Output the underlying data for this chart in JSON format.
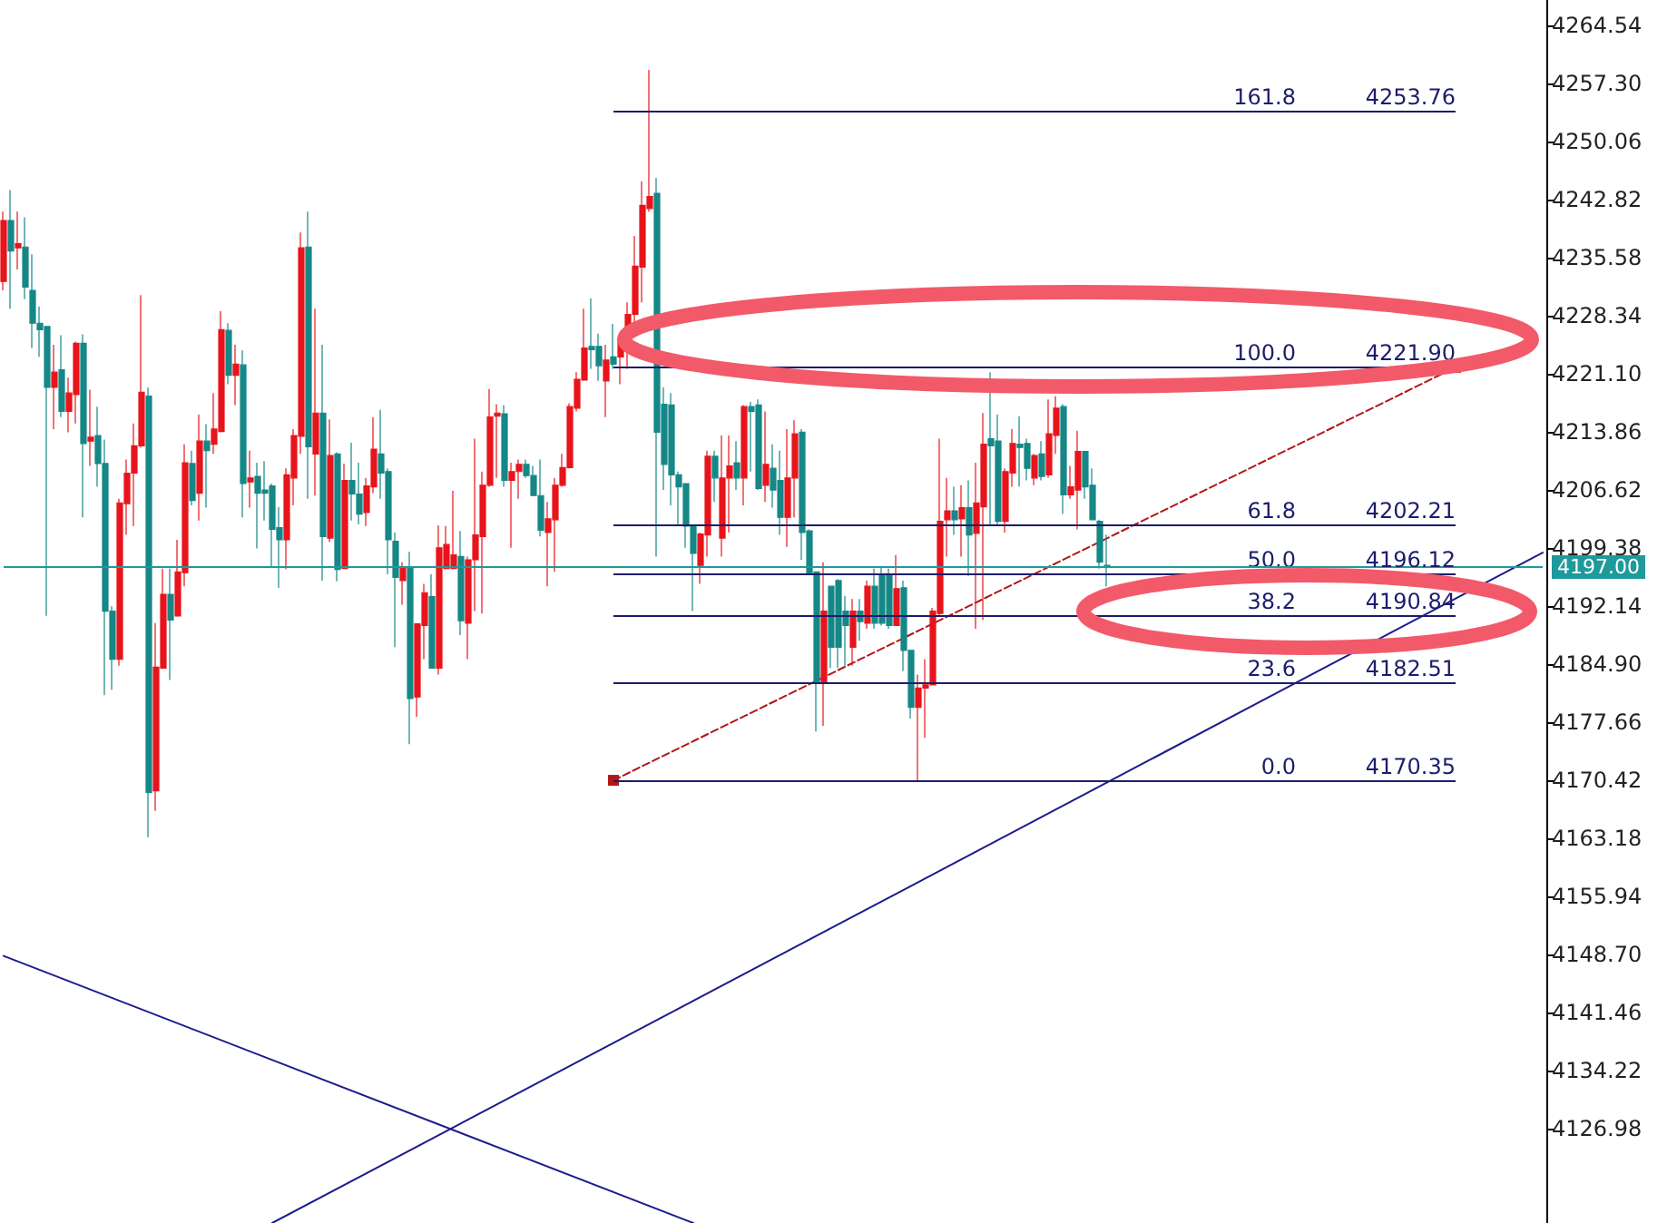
{
  "chart_data": {
    "type": "candlestick",
    "categories": [
      null,
      null,
      null,
      null,
      null,
      null,
      null,
      null,
      null,
      null,
      null,
      null,
      null,
      null,
      null,
      null,
      null,
      null,
      null,
      null,
      null,
      null,
      null,
      null,
      null,
      null,
      null,
      null,
      null,
      null,
      null,
      null,
      null,
      null,
      null,
      null,
      null,
      null,
      null,
      null,
      null,
      null,
      null,
      null,
      null,
      null,
      null,
      null,
      null,
      null,
      null,
      null,
      null,
      null,
      null,
      null,
      null,
      null,
      null,
      null,
      null,
      null,
      null,
      null,
      null,
      null,
      null,
      null,
      null,
      null,
      null,
      null,
      null,
      null,
      null,
      null,
      null,
      null,
      null,
      null,
      null,
      null,
      null,
      null,
      null,
      null,
      null,
      null,
      null,
      null,
      null,
      null,
      null,
      null,
      null,
      null,
      null,
      null,
      null,
      null,
      null,
      null,
      null,
      null,
      null,
      null,
      null,
      null,
      null,
      null,
      null,
      null,
      null,
      null,
      null,
      null,
      null,
      null,
      null,
      null,
      null,
      null,
      null,
      null,
      null,
      null,
      null,
      null,
      null,
      null,
      null,
      null,
      null,
      null,
      null,
      null,
      null,
      null,
      null,
      null,
      null,
      null,
      null,
      null,
      null,
      null,
      null,
      null,
      null,
      null,
      null,
      null,
      null,
      null,
      null,
      null,
      null,
      null,
      null,
      null,
      null,
      null,
      null,
      null,
      null,
      null,
      null,
      null,
      null,
      null,
      null,
      null,
      null,
      null,
      null,
      null,
      null,
      null,
      null,
      null,
      null,
      null,
      null,
      null,
      null,
      null,
      null,
      null,
      null,
      null,
      null,
      null,
      null,
      null,
      null,
      null,
      null,
      null,
      null,
      null,
      null,
      null,
      null,
      null,
      null,
      null,
      null,
      null,
      null,
      null,
      null,
      null,
      null
    ],
    "colors": [
      "#e8141c",
      "#168787",
      "#e8141c",
      "#168787",
      "#168787",
      "#168787",
      "#168787",
      "#e8141c",
      "#168787",
      "#e8141c",
      "#e8141c",
      "#168787",
      "#e8141c",
      "#168787",
      "#168787",
      "#168787",
      "#e8141c",
      "#e8141c",
      "#e8141c",
      "#e8141c",
      "#168787",
      "#e8141c",
      "#e8141c",
      "#168787",
      "#e8141c",
      "#e8141c",
      "#168787",
      "#e8141c",
      "#168787",
      "#e8141c",
      "#e8141c",
      "#168787",
      "#e8141c",
      "#168787",
      "#e8141c",
      "#168787",
      "#168787",
      "#168787",
      "#168787",
      "#e8141c",
      "#e8141c",
      "#e8141c",
      "#168787",
      "#e8141c",
      "#168787",
      "#e8141c",
      "#168787",
      "#e8141c",
      "#168787",
      "#168787",
      "#e8141c",
      "#e8141c",
      "#168787",
      "#168787",
      "#168787",
      "#e8141c",
      "#168787",
      "#e8141c",
      "#e8141c",
      "#168787",
      "#e8141c",
      "#e8141c",
      "#e8141c",
      "#168787",
      "#e8141c",
      "#e8141c",
      "#e8141c",
      "#e8141c",
      "#e8141c",
      "#168787",
      "#e8141c",
      "#e8141c",
      "#168787",
      "#168787",
      "#168787",
      "#e8141c",
      "#e8141c",
      "#e8141c",
      "#e8141c",
      "#e8141c",
      "#e8141c",
      "#168787",
      "#168787",
      "#e8141c",
      "#168787",
      "#e8141c",
      "#e8141c",
      "#e8141c",
      "#e8141c",
      "#e8141c",
      "#168787",
      "#168787",
      "#168787",
      "#168787",
      "#168787",
      "#168787",
      "#e8141c",
      "#e8141c",
      "#168787",
      "#e8141c",
      "#e8141c",
      "#168787",
      "#e8141c",
      "#168787",
      "#168787",
      "#e8141c",
      "#168787",
      "#168787",
      "#e8141c",
      "#e8141c",
      "#168787",
      "#168787",
      "#168787",
      "#e8141c",
      "#168787",
      "#168787",
      "#168787",
      "#e8141c",
      "#168787",
      "#e8141c",
      "#168787",
      "#168787",
      "#168787",
      "#e8141c",
      "#168787",
      "#168787",
      "#e8141c",
      "#e8141c",
      "#e8141c",
      "#e8141c",
      "#e8141c",
      "#168787",
      "#e8141c",
      "#168787",
      "#e8141c",
      "#e8141c",
      "#168787",
      "#168787",
      "#e8141c",
      "#e8141c",
      "#168787",
      "#168787",
      "#e8141c",
      "#168787",
      "#e8141c",
      "#e8141c",
      "#168787",
      "#e8141c",
      "#e8141c",
      "#168787",
      "#168787",
      "#168787",
      "#168787",
      null,
      null,
      null,
      null,
      null,
      null,
      null,
      null,
      null,
      null,
      null,
      null,
      null,
      null,
      null,
      null,
      null,
      null,
      null,
      null,
      null,
      null,
      null,
      null,
      null,
      null,
      null,
      null,
      null,
      null,
      null,
      null,
      null,
      null,
      null,
      null,
      null,
      null,
      null,
      null,
      null,
      null,
      null,
      null,
      null,
      null,
      null,
      null,
      null,
      null,
      null,
      null,
      null,
      null,
      null,
      null,
      null,
      null,
      null,
      null
    ],
    "ohlc": [
      [
        4232.6,
        4241.3,
        4231.5,
        4240.2
      ],
      [
        4240.2,
        4244.0,
        4229.2,
        4236.4
      ],
      [
        4236.8,
        4241.3,
        4234.1,
        4237.3
      ],
      [
        4236.9,
        4240.6,
        4230.4,
        4231.9
      ],
      [
        4231.5,
        4236.0,
        4224.3,
        4227.4
      ],
      [
        4227.4,
        4229.5,
        4223.2,
        4226.6
      ],
      [
        4227.0,
        4227.0,
        4190.9,
        4219.4
      ],
      [
        4219.4,
        4224.7,
        4214.2,
        4221.3
      ],
      [
        4221.6,
        4225.9,
        4215.7,
        4216.4
      ],
      [
        4216.4,
        4220.6,
        4213.8,
        4218.7
      ],
      [
        4218.5,
        4225.1,
        4214.9,
        4224.9
      ],
      [
        4224.9,
        4226.0,
        4203.2,
        4212.4
      ],
      [
        4212.7,
        4219.1,
        4209.6,
        4213.2
      ],
      [
        4213.4,
        4217.0,
        4207.0,
        4209.9
      ],
      [
        4209.9,
        4212.9,
        4181.0,
        4191.5
      ],
      [
        4191.5,
        4192.1,
        4181.7,
        4185.5
      ],
      [
        4185.5,
        4205.5,
        4184.7,
        4205.0
      ],
      [
        4204.9,
        4210.4,
        4201.0,
        4208.7
      ],
      [
        4208.7,
        4214.9,
        4202.1,
        4212.1
      ],
      [
        4212.1,
        4230.9,
        4211.9,
        4218.8
      ],
      [
        4218.3,
        4219.4,
        4163.3,
        4168.9
      ],
      [
        4169.1,
        4190.0,
        4166.6,
        4184.5
      ],
      [
        4184.4,
        4196.8,
        4184.4,
        4193.6
      ],
      [
        4193.6,
        4196.8,
        4182.9,
        4190.4
      ],
      [
        4190.9,
        4200.4,
        4190.8,
        4196.4
      ],
      [
        4196.3,
        4212.3,
        4194.6,
        4210.0
      ],
      [
        4209.9,
        4211.5,
        4204.7,
        4205.3
      ],
      [
        4206.2,
        4216.0,
        4202.8,
        4212.7
      ],
      [
        4212.7,
        4214.8,
        4204.4,
        4211.5
      ],
      [
        4212.3,
        4218.7,
        4211.1,
        4214.2
      ],
      [
        4213.9,
        4228.9,
        4213.8,
        4226.6
      ],
      [
        4226.5,
        4227.4,
        4219.8,
        4220.9
      ],
      [
        4220.9,
        4224.7,
        4217.2,
        4222.3
      ],
      [
        4222.2,
        4224.0,
        4203.2,
        4207.4
      ],
      [
        4207.6,
        4211.5,
        4204.4,
        4208.1
      ],
      [
        4208.3,
        4210.0,
        4199.3,
        4206.2
      ],
      [
        4206.6,
        4210.2,
        4202.8,
        4206.2
      ],
      [
        4207.1,
        4207.4,
        4197.0,
        4201.7
      ],
      [
        4201.9,
        4204.5,
        4194.4,
        4200.4
      ],
      [
        4200.4,
        4209.3,
        4196.7,
        4208.5
      ],
      [
        4208.1,
        4214.2,
        4204.7,
        4213.4
      ],
      [
        4213.3,
        4238.7,
        4211.1,
        4236.8
      ],
      [
        4236.9,
        4241.3,
        4205.5,
        4212.0
      ],
      [
        4211.1,
        4229.2,
        4205.9,
        4216.2
      ],
      [
        4216.2,
        4224.7,
        4195.3,
        4200.8
      ],
      [
        4200.6,
        4215.4,
        4200.1,
        4210.9
      ],
      [
        4211.1,
        4211.3,
        4195.2,
        4196.7
      ],
      [
        4196.8,
        4209.9,
        4196.8,
        4207.8
      ],
      [
        4207.8,
        4212.5,
        4202.8,
        4206.1
      ],
      [
        4206.1,
        4210.0,
        4202.3,
        4203.6
      ],
      [
        4203.8,
        4208.1,
        4202.1,
        4207.1
      ],
      [
        4207.0,
        4215.7,
        4206.2,
        4211.7
      ],
      [
        4211.1,
        4216.6,
        4205.5,
        4208.7
      ],
      [
        4208.9,
        4209.3,
        4196.1,
        4200.4
      ],
      [
        4200.2,
        4201.3,
        4187.0,
        4195.7
      ],
      [
        4195.3,
        4197.6,
        4192.3,
        4196.8
      ],
      [
        4196.8,
        4198.9,
        4174.9,
        4180.6
      ],
      [
        4180.8,
        4190.0,
        4178.3,
        4189.9
      ],
      [
        4189.7,
        4194.9,
        4185.5,
        4193.8
      ],
      [
        4193.3,
        4196.1,
        4184.4,
        4184.4
      ],
      [
        4184.4,
        4202.2,
        4183.6,
        4199.4
      ],
      [
        4196.8,
        4202.1,
        4196.8,
        4199.8
      ],
      [
        4196.8,
        4206.5,
        4196.8,
        4198.5
      ],
      [
        4198.3,
        4201.5,
        4188.5,
        4190.3
      ],
      [
        4190.0,
        4198.3,
        4185.5,
        4197.9
      ],
      [
        4197.9,
        4213.0,
        4191.5,
        4201.0
      ],
      [
        4200.8,
        4208.9,
        4191.2,
        4207.2
      ],
      [
        4207.2,
        4219.2,
        4207.0,
        4215.7
      ],
      [
        4215.8,
        4217.3,
        4208.1,
        4216.2
      ],
      [
        4216.1,
        4217.2,
        4207.0,
        4207.8
      ],
      [
        4207.8,
        4210.0,
        4199.4,
        4208.9
      ],
      [
        4208.9,
        4210.4,
        4205.5,
        4209.8
      ],
      [
        4209.8,
        4210.4,
        4208.1,
        4208.4
      ],
      [
        4208.4,
        4209.6,
        4205.9,
        4205.9
      ],
      [
        4205.9,
        4210.4,
        4200.8,
        4201.6
      ],
      [
        4201.3,
        4205.1,
        4194.6,
        4203.0
      ],
      [
        4202.9,
        4208.1,
        4196.4,
        4207.2
      ],
      [
        4207.2,
        4211.1,
        4207.0,
        4209.4
      ],
      [
        4209.4,
        4217.4,
        4209.3,
        4217.0
      ],
      [
        4216.8,
        4221.3,
        4216.4,
        4220.4
      ],
      [
        4220.3,
        4229.2,
        4220.2,
        4224.3
      ],
      [
        4224.5,
        4230.5,
        4221.7,
        4224.1
      ],
      [
        4224.5,
        4226.1,
        4220.2,
        4222.1
      ],
      [
        4220.2,
        4224.7,
        4215.7,
        4222.8
      ],
      [
        4223.2,
        4227.3,
        4221.7,
        4222.3
      ],
      [
        4223.2,
        4225.5,
        4219.8,
        4225.5
      ],
      [
        4225.5,
        4230.0,
        4221.7,
        4228.5
      ],
      [
        4228.5,
        4238.3,
        4227.4,
        4234.5
      ],
      [
        4234.4,
        4245.1,
        4230.0,
        4242.1
      ],
      [
        4241.7,
        4259.0,
        4241.3,
        4243.2
      ],
      [
        4243.6,
        4245.5,
        4198.3,
        4213.8
      ],
      [
        4217.3,
        4219.4,
        4206.6,
        4209.8
      ],
      [
        4217.2,
        4218.7,
        4204.7,
        4208.5
      ],
      [
        4208.5,
        4208.9,
        4202.1,
        4207.0
      ],
      [
        4207.4,
        4207.4,
        4199.4,
        4202.1
      ],
      [
        4202.1,
        4202.1,
        4191.5,
        4198.7
      ],
      [
        4197.2,
        4201.3,
        4194.9,
        4201.1
      ],
      [
        4201.0,
        4211.5,
        4198.3,
        4210.8
      ],
      [
        4210.8,
        4211.5,
        4205.1,
        4208.1
      ],
      [
        4200.6,
        4213.4,
        4198.3,
        4208.1
      ],
      [
        4208.1,
        4213.4,
        4201.3,
        4209.6
      ],
      [
        4210.0,
        4212.7,
        4206.6,
        4208.1
      ],
      [
        4208.1,
        4217.2,
        4204.7,
        4217.0
      ],
      [
        4217.0,
        4217.6,
        4208.9,
        4216.4
      ],
      [
        4217.2,
        4217.9,
        4206.6,
        4206.8
      ],
      [
        4207.2,
        4216.4,
        4205.1,
        4209.8
      ],
      [
        4209.3,
        4212.3,
        4204.4,
        4206.6
      ],
      [
        4207.8,
        4211.5,
        4201.0,
        4203.2
      ],
      [
        4203.2,
        4214.2,
        4199.5,
        4208.1
      ],
      [
        4208.1,
        4215.3,
        4203.2,
        4213.6
      ],
      [
        4213.8,
        4214.2,
        4197.9,
        4201.3
      ],
      [
        4201.5,
        4201.7,
        4196.1,
        4196.1
      ],
      [
        4196.4,
        4196.4,
        4176.5,
        4182.5
      ],
      [
        4182.5,
        4197.6,
        4177.2,
        4191.5
      ],
      [
        4194.6,
        4194.6,
        4184.4,
        4187.0
      ],
      [
        4195.3,
        4195.5,
        4184.4,
        4187.0
      ],
      [
        4191.5,
        4193.4,
        4184.7,
        4189.7
      ],
      [
        4187.0,
        4193.0,
        4184.7,
        4191.5
      ],
      [
        4191.5,
        4193.0,
        4187.8,
        4190.2
      ],
      [
        4190.0,
        4195.3,
        4189.3,
        4194.6
      ],
      [
        4194.6,
        4196.8,
        4189.3,
        4190.0
      ],
      [
        4195.9,
        4197.0,
        4189.7,
        4190.0
      ],
      [
        4196.1,
        4196.8,
        4189.3,
        4189.7
      ],
      [
        4189.7,
        4198.5,
        4189.7,
        4194.3
      ],
      [
        4194.4,
        4195.3,
        4184.0,
        4186.6
      ],
      [
        4186.6,
        4186.6,
        4178.1,
        4179.5
      ],
      [
        4179.5,
        4183.6,
        4170.4,
        4181.9
      ],
      [
        4181.9,
        4185.5,
        4175.7,
        4182.3
      ],
      [
        4182.3,
        4191.9,
        4182.3,
        4191.5
      ],
      [
        4191.2,
        4213.0,
        4190.9,
        4202.7
      ],
      [
        4202.9,
        4208.1,
        4198.3,
        4204.0
      ],
      [
        4204.0,
        4207.0,
        4201.0,
        4202.9
      ],
      [
        4203.0,
        4207.2,
        4198.3,
        4204.4
      ],
      [
        4204.4,
        4207.8,
        4195.9,
        4201.0
      ],
      [
        4201.2,
        4210.0,
        4189.3,
        4205.0
      ],
      [
        4204.5,
        4216.2,
        4190.4,
        4212.3
      ],
      [
        4213.0,
        4221.3,
        4202.1,
        4212.1
      ],
      [
        4212.7,
        4216.0,
        4202.1,
        4202.7
      ],
      [
        4202.7,
        4209.3,
        4201.3,
        4208.9
      ],
      [
        4208.7,
        4214.2,
        4207.0,
        4212.4
      ],
      [
        4212.3,
        4215.8,
        4207.0,
        4211.9
      ],
      [
        4212.4,
        4213.0,
        4207.8,
        4209.3
      ],
      [
        4208.1,
        4211.1,
        4207.2,
        4210.9
      ],
      [
        4211.1,
        4212.7,
        4207.8,
        4208.3
      ],
      [
        4208.5,
        4217.9,
        4208.1,
        4213.6
      ],
      [
        4213.4,
        4218.3,
        4211.1,
        4216.8
      ],
      [
        4217.0,
        4217.3,
        4203.6,
        4206.0
      ],
      [
        4206.0,
        4209.6,
        4205.5,
        4207.0
      ],
      [
        4206.6,
        4214.0,
        4201.7,
        4211.4
      ],
      [
        4211.4,
        4211.5,
        4205.5,
        4207.0
      ],
      [
        4207.2,
        4209.3,
        4202.9,
        4202.9
      ],
      [
        4202.7,
        4202.9,
        4196.8,
        4197.6
      ],
      [
        4197.2,
        4201.0,
        4194.6,
        4197.0
      ],
      null,
      null,
      null,
      null,
      null,
      null,
      null,
      null,
      null,
      null,
      null,
      null,
      null,
      null,
      null,
      null,
      null,
      null,
      null,
      null,
      null,
      null,
      null,
      null,
      null,
      null,
      null,
      null,
      null,
      null,
      null,
      null,
      null,
      null,
      null,
      null,
      null,
      null,
      null,
      null,
      null,
      null,
      null,
      null,
      null,
      null,
      null,
      null,
      null,
      null,
      null,
      null,
      null,
      null,
      null,
      null,
      null,
      null,
      null,
      null
    ],
    "series": [
      {
        "type": "line",
        "color": "#b01818",
        "line_style": "dashed",
        "marker": "square",
        "values": [
          null,
          null,
          null,
          null,
          null,
          null,
          null,
          null,
          null,
          null,
          null,
          null,
          null,
          null,
          null,
          null,
          null,
          null,
          null,
          null,
          null,
          null,
          null,
          null,
          null,
          null,
          null,
          null,
          null,
          null,
          null,
          null,
          null,
          null,
          null,
          null,
          null,
          null,
          null,
          null,
          null,
          null,
          null,
          null,
          null,
          null,
          null,
          null,
          null,
          null,
          null,
          null,
          null,
          null,
          null,
          null,
          null,
          null,
          null,
          null,
          null,
          null,
          null,
          null,
          null,
          null,
          null,
          null,
          null,
          null,
          null,
          null,
          null,
          null,
          null,
          null,
          null,
          null,
          null,
          null,
          null,
          null,
          null,
          null,
          4170.4,
          null,
          null,
          null,
          null,
          null,
          null,
          null,
          null,
          null,
          null,
          null,
          null,
          null,
          null,
          null,
          null,
          null,
          null,
          null,
          null,
          null,
          null,
          null,
          null,
          null,
          null,
          null,
          null,
          null,
          null,
          null,
          null,
          null,
          null,
          null,
          null,
          null,
          null,
          null,
          null,
          null,
          null,
          null,
          null,
          null,
          null,
          null,
          null,
          null,
          null,
          null,
          null,
          null,
          null,
          null,
          null,
          null,
          null,
          null,
          null,
          null,
          null,
          null,
          null,
          null,
          null,
          null,
          null,
          null,
          null,
          null,
          null,
          null,
          null,
          null,
          null,
          null,
          null,
          null,
          null,
          null,
          null,
          null,
          null,
          null,
          null,
          null,
          null,
          null,
          null,
          null,
          null,
          null,
          null,
          null,
          null,
          null,
          null,
          null,
          null,
          null,
          null,
          null,
          null,
          null,
          null,
          null,
          null,
          null,
          null,
          null,
          null,
          null,
          null,
          null,
          4221.9,
          null,
          null,
          null,
          null,
          null,
          null,
          null,
          null,
          null,
          null,
          null,
          null
        ]
      },
      {
        "type": "line",
        "color": "#1c1c8c",
        "line_style": "solid",
        "marker": "none",
        "values": [
          null,
          null,
          null,
          null,
          null,
          null,
          null,
          null,
          null,
          null,
          null,
          null,
          null,
          null,
          null,
          null,
          null,
          null,
          null,
          null,
          null,
          null,
          null,
          null,
          null,
          null,
          null,
          null,
          null,
          null,
          null,
          null,
          null,
          null,
          null,
          null,
          null,
          4115.2,
          null,
          null,
          null,
          null,
          null,
          null,
          null,
          null,
          null,
          null,
          null,
          null,
          null,
          null,
          null,
          null,
          null,
          null,
          null,
          null,
          null,
          null,
          null,
          null,
          null,
          null,
          null,
          null,
          null,
          null,
          null,
          null,
          null,
          null,
          null,
          null,
          null,
          null,
          null,
          null,
          null,
          null,
          null,
          null,
          null,
          null,
          null,
          null,
          null,
          null,
          null,
          null,
          null,
          null,
          null,
          null,
          null,
          null,
          null,
          null,
          null,
          null,
          null,
          null,
          null,
          null,
          null,
          null,
          null,
          null,
          null,
          null,
          null,
          null,
          null,
          null,
          null,
          null,
          null,
          null,
          null,
          null,
          null,
          null,
          null,
          null,
          null,
          null,
          null,
          null,
          null,
          null,
          null,
          null,
          null,
          null,
          null,
          null,
          null,
          null,
          null,
          null,
          null,
          null,
          null,
          null,
          null,
          null,
          null,
          null,
          null,
          null,
          null,
          null,
          null,
          null,
          null,
          null,
          null,
          null,
          null,
          null,
          null,
          null,
          null,
          null,
          null,
          null,
          null,
          null,
          null,
          null,
          null,
          null,
          null,
          null,
          null,
          null,
          null,
          null,
          null,
          null,
          null,
          null,
          null,
          null,
          null,
          null,
          null,
          null,
          null,
          null,
          null,
          null,
          null,
          null,
          null,
          null,
          null,
          null,
          null,
          null,
          null,
          null,
          null,
          null,
          null,
          null,
          null,
          null,
          null,
          null,
          null,
          null,
          4198.8
        ]
      },
      {
        "type": "line",
        "color": "#1c1c8c",
        "line_style": "solid",
        "marker": "none",
        "values": [
          4148.5,
          null,
          null,
          null,
          null,
          null,
          null,
          null,
          null,
          null,
          null,
          null,
          null,
          null,
          null,
          null,
          null,
          null,
          null,
          null,
          null,
          null,
          null,
          null,
          null,
          null,
          null,
          null,
          null,
          null,
          null,
          null,
          null,
          null,
          null,
          null,
          null,
          null,
          null,
          null,
          null,
          null,
          null,
          null,
          null,
          null,
          null,
          null,
          null,
          null,
          null,
          null,
          null,
          null,
          null,
          null,
          null,
          null,
          null,
          null,
          null,
          null,
          null,
          null,
          null,
          null,
          null,
          null,
          null,
          null,
          null,
          null,
          null,
          null,
          null,
          null,
          null,
          null,
          null,
          null,
          null,
          null,
          null,
          null,
          null,
          null,
          null,
          null,
          null,
          null,
          null,
          null,
          null,
          null,
          null,
          4115.2,
          null,
          null,
          null,
          null,
          null,
          null,
          null,
          null,
          null,
          null,
          null,
          null,
          null,
          null,
          null,
          null,
          null,
          null,
          null,
          null,
          null,
          null,
          null,
          null,
          null,
          null,
          null,
          null,
          null,
          null,
          null,
          null,
          null,
          null,
          null,
          null,
          null,
          null,
          null,
          null,
          null,
          null,
          null,
          null,
          null,
          null,
          null,
          null,
          null,
          null,
          null,
          null,
          null,
          null,
          null,
          null,
          null,
          null,
          null,
          null,
          null,
          null,
          null,
          null,
          null,
          null,
          null,
          null,
          null,
          null,
          null,
          null,
          null,
          null,
          null,
          null,
          null,
          null,
          null,
          null,
          null,
          null,
          null,
          null,
          null,
          null,
          null,
          null,
          null,
          null,
          null,
          null,
          null,
          null,
          null,
          null,
          null,
          null,
          null,
          null,
          null,
          null,
          null,
          null,
          null,
          null,
          null,
          null,
          null,
          null,
          null,
          null,
          null,
          null,
          null,
          null,
          null
        ]
      }
    ],
    "ref_lines": [
      {
        "axis": "y",
        "value": 4253.76,
        "label": "4253.76"
      },
      {
        "axis": "y",
        "value": 4221.9,
        "label": "4221.90"
      },
      {
        "axis": "y",
        "value": 4202.21,
        "label": "4202.21"
      },
      {
        "axis": "y",
        "value": 4196.12,
        "label": "4196.12"
      },
      {
        "axis": "y",
        "value": 4190.84,
        "label": "4190.84"
      },
      {
        "axis": "y",
        "value": 4182.51,
        "label": "4182.51"
      },
      {
        "axis": "y",
        "value": 4170.35,
        "label": "4170.35"
      },
      {
        "axis": "y",
        "value": 4197.0,
        "label": "4197.00",
        "color": "#1e9a9a"
      }
    ],
    "annotations": [
      {
        "text": "161.8",
        "y": 4253.76
      },
      {
        "text": "100.0",
        "y": 4221.9
      },
      {
        "text": "61.8",
        "y": 4202.21
      },
      {
        "text": "50.0",
        "y": 4196.12
      },
      {
        "text": "38.2",
        "y": 4190.84
      },
      {
        "text": "23.6",
        "y": 4182.51
      },
      {
        "text": "0.0",
        "y": 4170.35
      }
    ],
    "ylim": [
      4115.2,
      4267.7
    ],
    "yticks": [
      4264.54,
      {
        "value": 4257.3,
        "label": "4257.30"
      },
      4250.06,
      4242.82,
      4235.58,
      4228.34,
      {
        "value": 4221.1,
        "label": "4221.10"
      },
      4213.86,
      4206.62,
      4199.38,
      4192.14,
      {
        "value": 4184.9,
        "label": "4184.90"
      },
      4177.66,
      4170.42,
      4163.18,
      4155.94,
      {
        "value": 4148.7,
        "label": "4148.70"
      },
      4141.46,
      4134.22,
      4126.98
    ],
    "tick_labels": "y"
  }
}
